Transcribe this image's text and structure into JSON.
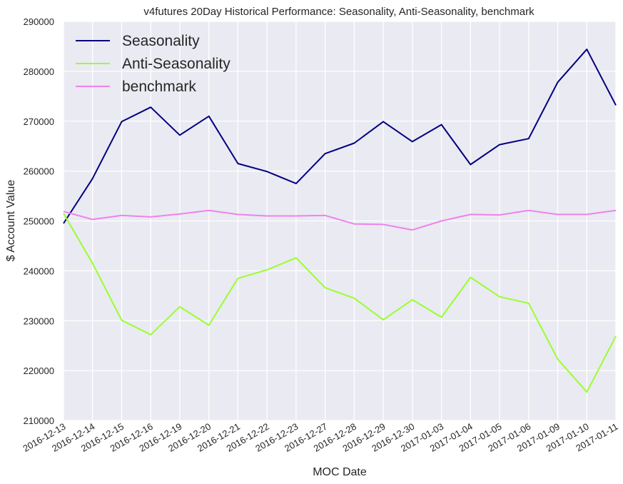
{
  "chart_data": {
    "type": "line",
    "title": "v4futures 20Day Historical Performance: Seasonality, Anti-Seasonality, benchmark",
    "xlabel": "MOC Date",
    "ylabel": "$ Account Value",
    "categories": [
      "2016-12-13",
      "2016-12-14",
      "2016-12-15",
      "2016-12-16",
      "2016-12-19",
      "2016-12-20",
      "2016-12-21",
      "2016-12-22",
      "2016-12-23",
      "2016-12-27",
      "2016-12-28",
      "2016-12-29",
      "2016-12-30",
      "2017-01-03",
      "2017-01-04",
      "2017-01-05",
      "2017-01-06",
      "2017-01-09",
      "2017-01-10",
      "2017-01-11"
    ],
    "ylim": [
      210000,
      290000
    ],
    "yticks": [
      "210000",
      "220000",
      "230000",
      "240000",
      "250000",
      "260000",
      "270000",
      "280000",
      "290000"
    ],
    "grid": true,
    "legend_position": "top-left",
    "background": "#eaeaf2",
    "series": [
      {
        "name": "Seasonality",
        "color": "#000080",
        "values": [
          249500,
          258500,
          269900,
          272800,
          267200,
          271000,
          261500,
          259900,
          257500,
          263500,
          265600,
          269900,
          265900,
          269300,
          261300,
          265300,
          266500,
          277800,
          284400,
          273200
        ]
      },
      {
        "name": "Anti-Seasonality",
        "color": "#9afe2e",
        "values": [
          251500,
          241500,
          230100,
          227200,
          232800,
          229100,
          238500,
          240200,
          242600,
          236600,
          234500,
          230200,
          234200,
          230700,
          238700,
          234800,
          233500,
          222300,
          215700,
          226900
        ]
      },
      {
        "name": "benchmark",
        "color": "#ee82ee",
        "values": [
          251900,
          250300,
          251100,
          250800,
          251400,
          252100,
          251300,
          251000,
          251000,
          251100,
          249400,
          249300,
          248200,
          250000,
          251300,
          251200,
          252100,
          251300,
          251300,
          252100
        ]
      }
    ]
  }
}
